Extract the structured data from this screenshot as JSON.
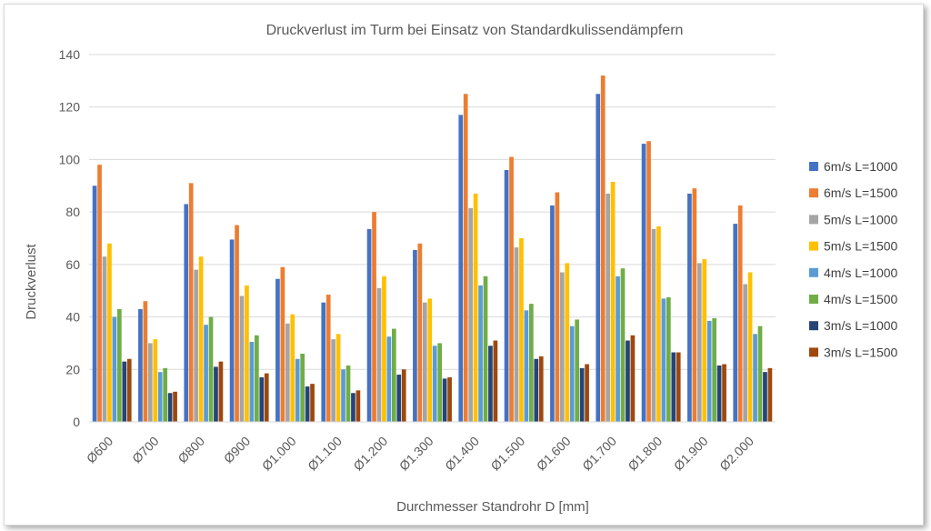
{
  "chart_data": {
    "type": "bar",
    "title": "Druckverlust im Turm bei Einsatz von Standardkulissendämpfern",
    "xlabel": "Durchmesser Standrohr D [mm]",
    "ylabel": "Druckverlust",
    "ylim": [
      0,
      140
    ],
    "yticks": [
      0,
      20,
      40,
      60,
      80,
      100,
      120,
      140
    ],
    "grid": true,
    "legend_position": "right",
    "categories": [
      "Ø600",
      "Ø700",
      "Ø800",
      "Ø900",
      "Ø1.000",
      "Ø1.100",
      "Ø1.200",
      "Ø1.300",
      "Ø1.400",
      "Ø1.500",
      "Ø1.600",
      "Ø1.700",
      "Ø1.800",
      "Ø1.900",
      "Ø2.000"
    ],
    "series": [
      {
        "name": "6m/s L=1000",
        "color": "#4472c4",
        "values": [
          90,
          43,
          83,
          69.5,
          54.5,
          45.5,
          73.5,
          65.5,
          117,
          96,
          82.5,
          125,
          106,
          87,
          75.5
        ]
      },
      {
        "name": "6m/s L=1500",
        "color": "#ed7d31",
        "values": [
          98,
          46,
          91,
          75,
          59,
          48.5,
          80,
          68,
          125,
          101,
          87.5,
          132,
          107,
          89,
          82.5
        ]
      },
      {
        "name": "5m/s L=1000",
        "color": "#a5a5a5",
        "values": [
          63,
          30,
          58,
          48,
          37.5,
          31.5,
          51,
          45.5,
          81.5,
          66.5,
          57,
          87,
          73.5,
          60.5,
          52.5
        ]
      },
      {
        "name": "5m/s L=1500",
        "color": "#ffc000",
        "values": [
          68,
          31.5,
          63,
          52,
          41,
          33.5,
          55.5,
          47,
          87,
          70,
          60.5,
          91.5,
          74.5,
          62,
          57
        ]
      },
      {
        "name": "4m/s L=1000",
        "color": "#5b9bd5",
        "values": [
          40,
          19,
          37,
          30.5,
          24,
          20,
          32.5,
          29,
          52,
          42.5,
          36.5,
          55.5,
          47,
          38.5,
          33.5
        ]
      },
      {
        "name": "4m/s L=1500",
        "color": "#70ad47",
        "values": [
          43,
          20.5,
          40,
          33,
          26,
          21.5,
          35.5,
          30,
          55.5,
          45,
          39,
          58.5,
          47.5,
          39.5,
          36.5
        ]
      },
      {
        "name": "3m/s L=1000",
        "color": "#264478",
        "values": [
          23,
          11,
          21,
          17,
          13.5,
          11,
          18,
          16.5,
          29,
          24,
          20.5,
          31,
          26.5,
          21.5,
          19
        ]
      },
      {
        "name": "3m/s L=1500",
        "color": "#9e480e",
        "values": [
          24,
          11.5,
          23,
          18.5,
          14.5,
          12,
          20,
          17,
          31,
          25,
          22,
          33,
          26.5,
          22,
          20.5
        ]
      }
    ]
  }
}
